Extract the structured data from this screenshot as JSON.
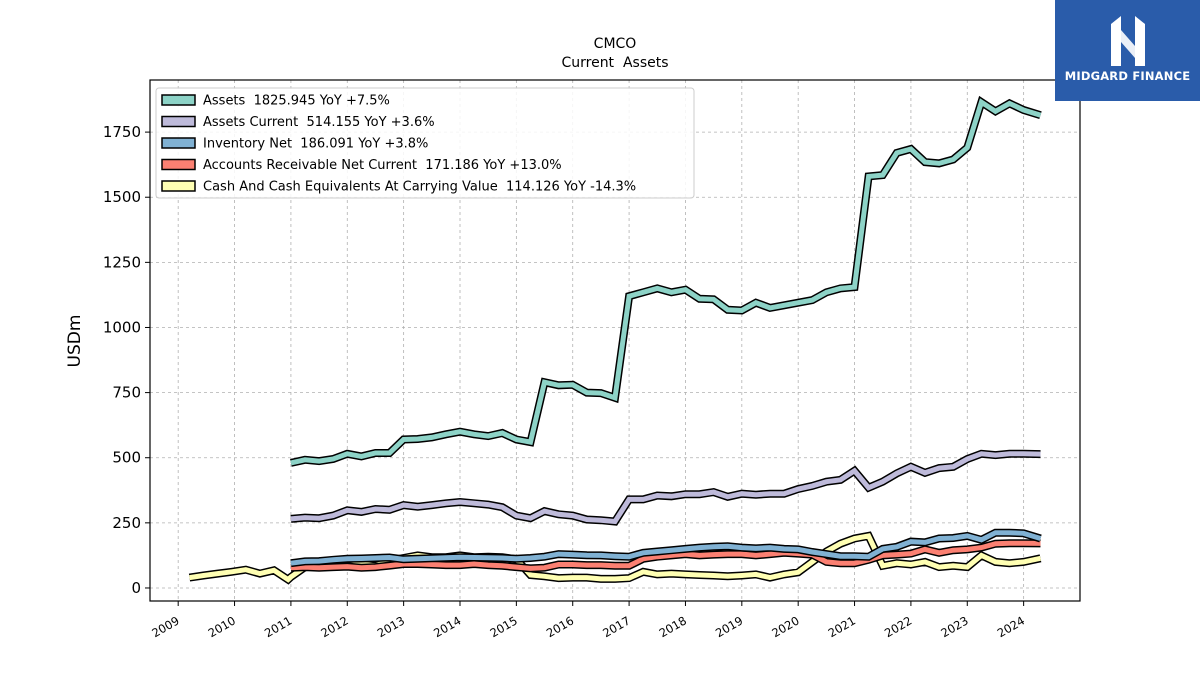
{
  "brand": {
    "name": "MIDGARD FINANCE",
    "background": "#2a5caa"
  },
  "chart_data": {
    "type": "line",
    "title": "CMCO",
    "subtitle": "Current  Assets",
    "ylabel": "USDm",
    "xlabel": "",
    "xlim": [
      2008.5,
      2025.0
    ],
    "ylim": [
      -50,
      1950
    ],
    "yticks": [
      0,
      250,
      500,
      750,
      1000,
      1250,
      1500,
      1750
    ],
    "xticks": [
      2009,
      2010,
      2011,
      2012,
      2013,
      2014,
      2015,
      2016,
      2017,
      2018,
      2019,
      2020,
      2021,
      2022,
      2023,
      2024
    ],
    "grid": true,
    "legend_position": "top-left",
    "series": [
      {
        "name": "Assets  1825.945 YoY +7.5%",
        "color": "#8dd3c7",
        "x": [
          2011.0,
          2011.25,
          2011.5,
          2011.75,
          2012.0,
          2012.25,
          2012.5,
          2012.75,
          2013.0,
          2013.25,
          2013.5,
          2013.75,
          2014.0,
          2014.25,
          2014.5,
          2014.75,
          2015.0,
          2015.25,
          2015.5,
          2015.75,
          2016.0,
          2016.25,
          2016.5,
          2016.75,
          2017.0,
          2017.25,
          2017.5,
          2017.75,
          2018.0,
          2018.25,
          2018.5,
          2018.75,
          2019.0,
          2019.25,
          2019.5,
          2019.75,
          2020.0,
          2020.25,
          2020.5,
          2020.75,
          2021.0,
          2021.25,
          2021.5,
          2021.75,
          2022.0,
          2022.25,
          2022.5,
          2022.75,
          2023.0,
          2023.25,
          2023.5,
          2023.75,
          2024.0,
          2024.3
        ],
        "y": [
          480,
          492,
          487,
          495,
          515,
          505,
          518,
          518,
          570,
          572,
          578,
          590,
          600,
          590,
          583,
          595,
          570,
          560,
          790,
          778,
          780,
          750,
          748,
          730,
          1120,
          1135,
          1150,
          1135,
          1145,
          1110,
          1108,
          1068,
          1065,
          1095,
          1075,
          1085,
          1095,
          1105,
          1135,
          1150,
          1155,
          1580,
          1585,
          1670,
          1685,
          1635,
          1630,
          1645,
          1690,
          1865,
          1830,
          1860,
          1835,
          1815
        ]
      },
      {
        "name": "Assets Current  514.155 YoY +3.6%",
        "color": "#bebada",
        "x": [
          2011.0,
          2011.25,
          2011.5,
          2011.75,
          2012.0,
          2012.25,
          2012.5,
          2012.75,
          2013.0,
          2013.25,
          2013.5,
          2013.75,
          2014.0,
          2014.25,
          2014.5,
          2014.75,
          2015.0,
          2015.25,
          2015.5,
          2015.75,
          2016.0,
          2016.25,
          2016.5,
          2016.75,
          2017.0,
          2017.25,
          2017.5,
          2017.75,
          2018.0,
          2018.25,
          2018.5,
          2018.75,
          2019.0,
          2019.25,
          2019.5,
          2019.75,
          2020.0,
          2020.25,
          2020.5,
          2020.75,
          2021.0,
          2021.25,
          2021.5,
          2021.75,
          2022.0,
          2022.25,
          2022.5,
          2022.75,
          2023.0,
          2023.25,
          2023.5,
          2023.75,
          2024.0,
          2024.3
        ],
        "y": [
          265,
          270,
          268,
          278,
          298,
          292,
          303,
          300,
          318,
          312,
          318,
          325,
          330,
          325,
          320,
          310,
          278,
          268,
          295,
          283,
          278,
          263,
          260,
          255,
          340,
          340,
          355,
          352,
          360,
          360,
          368,
          350,
          362,
          358,
          362,
          362,
          380,
          392,
          408,
          415,
          450,
          385,
          408,
          440,
          465,
          442,
          460,
          465,
          495,
          515,
          510,
          515,
          515,
          514
        ]
      },
      {
        "name": "Inventory Net  186.091 YoY +3.8%",
        "color": "#80b1d3",
        "x": [
          2011.0,
          2011.25,
          2011.5,
          2011.75,
          2012.0,
          2012.25,
          2012.5,
          2012.75,
          2013.0,
          2013.25,
          2013.5,
          2013.75,
          2014.0,
          2014.25,
          2014.5,
          2014.75,
          2015.0,
          2015.25,
          2015.5,
          2015.75,
          2016.0,
          2016.25,
          2016.5,
          2016.75,
          2017.0,
          2017.25,
          2017.5,
          2017.75,
          2018.0,
          2018.25,
          2018.5,
          2018.75,
          2019.0,
          2019.25,
          2019.5,
          2019.75,
          2020.0,
          2020.25,
          2020.5,
          2020.75,
          2021.0,
          2021.25,
          2021.5,
          2021.75,
          2022.0,
          2022.25,
          2022.5,
          2022.75,
          2023.0,
          2023.25,
          2023.5,
          2023.75,
          2024.0,
          2024.3
        ],
        "y": [
          95,
          102,
          103,
          108,
          112,
          113,
          115,
          117,
          110,
          112,
          114,
          116,
          118,
          117,
          116,
          115,
          112,
          115,
          120,
          130,
          128,
          126,
          125,
          122,
          120,
          135,
          140,
          145,
          150,
          155,
          158,
          160,
          155,
          152,
          155,
          150,
          148,
          138,
          130,
          122,
          122,
          120,
          150,
          158,
          178,
          175,
          190,
          192,
          200,
          185,
          212,
          212,
          210,
          190
        ]
      },
      {
        "name": "Accounts Receivable Net Current  171.186 YoY +13.0%",
        "color": "#fb8072",
        "x": [
          2011.0,
          2011.25,
          2011.5,
          2011.75,
          2012.0,
          2012.25,
          2012.5,
          2012.75,
          2013.0,
          2013.25,
          2013.5,
          2013.75,
          2014.0,
          2014.25,
          2014.5,
          2014.75,
          2015.0,
          2015.25,
          2015.5,
          2015.75,
          2016.0,
          2016.25,
          2016.5,
          2016.75,
          2017.0,
          2017.25,
          2017.5,
          2017.75,
          2018.0,
          2018.25,
          2018.5,
          2018.75,
          2019.0,
          2019.25,
          2019.5,
          2019.75,
          2020.0,
          2020.25,
          2020.5,
          2020.75,
          2021.0,
          2021.25,
          2021.5,
          2021.75,
          2022.0,
          2022.25,
          2022.5,
          2022.75,
          2023.0,
          2023.25,
          2023.5,
          2023.75,
          2024.0,
          2024.3
        ],
        "y": [
          78,
          80,
          78,
          80,
          82,
          78,
          80,
          86,
          92,
          92,
          90,
          88,
          88,
          92,
          88,
          85,
          80,
          75,
          78,
          90,
          90,
          88,
          88,
          85,
          85,
          112,
          120,
          125,
          130,
          125,
          128,
          130,
          130,
          125,
          130,
          135,
          132,
          128,
          100,
          95,
          95,
          108,
          125,
          128,
          132,
          148,
          135,
          145,
          148,
          155,
          170,
          172,
          172,
          171
        ]
      },
      {
        "name": "Cash And Cash Equivalents At Carrying Value  114.126 YoY -14.3%",
        "color": "#ffffb3",
        "x": [
          2009.2,
          2009.45,
          2009.7,
          2009.95,
          2010.2,
          2010.45,
          2010.7,
          2010.95,
          2011.0,
          2011.25,
          2011.5,
          2011.75,
          2012.0,
          2012.25,
          2012.5,
          2012.75,
          2013.0,
          2013.25,
          2013.5,
          2013.75,
          2014.0,
          2014.25,
          2014.5,
          2014.75,
          2015.0,
          2015.25,
          2015.5,
          2015.75,
          2016.0,
          2016.25,
          2016.5,
          2016.75,
          2017.0,
          2017.25,
          2017.5,
          2017.75,
          2018.0,
          2018.25,
          2018.5,
          2018.75,
          2019.0,
          2019.25,
          2019.5,
          2019.75,
          2020.0,
          2020.25,
          2020.5,
          2020.75,
          2021.0,
          2021.25,
          2021.5,
          2021.75,
          2022.0,
          2022.25,
          2022.5,
          2022.75,
          2023.0,
          2023.25,
          2023.5,
          2023.75,
          2024.0,
          2024.3
        ],
        "y": [
          40,
          48,
          55,
          62,
          70,
          55,
          68,
          32,
          42,
          80,
          82,
          82,
          85,
          92,
          85,
          105,
          115,
          125,
          118,
          118,
          125,
          118,
          120,
          118,
          110,
          50,
          45,
          38,
          40,
          40,
          35,
          35,
          38,
          62,
          52,
          55,
          52,
          50,
          48,
          45,
          48,
          52,
          40,
          52,
          60,
          100,
          140,
          170,
          190,
          200,
          85,
          95,
          90,
          100,
          80,
          85,
          80,
          125,
          100,
          95,
          100,
          114
        ]
      }
    ]
  }
}
